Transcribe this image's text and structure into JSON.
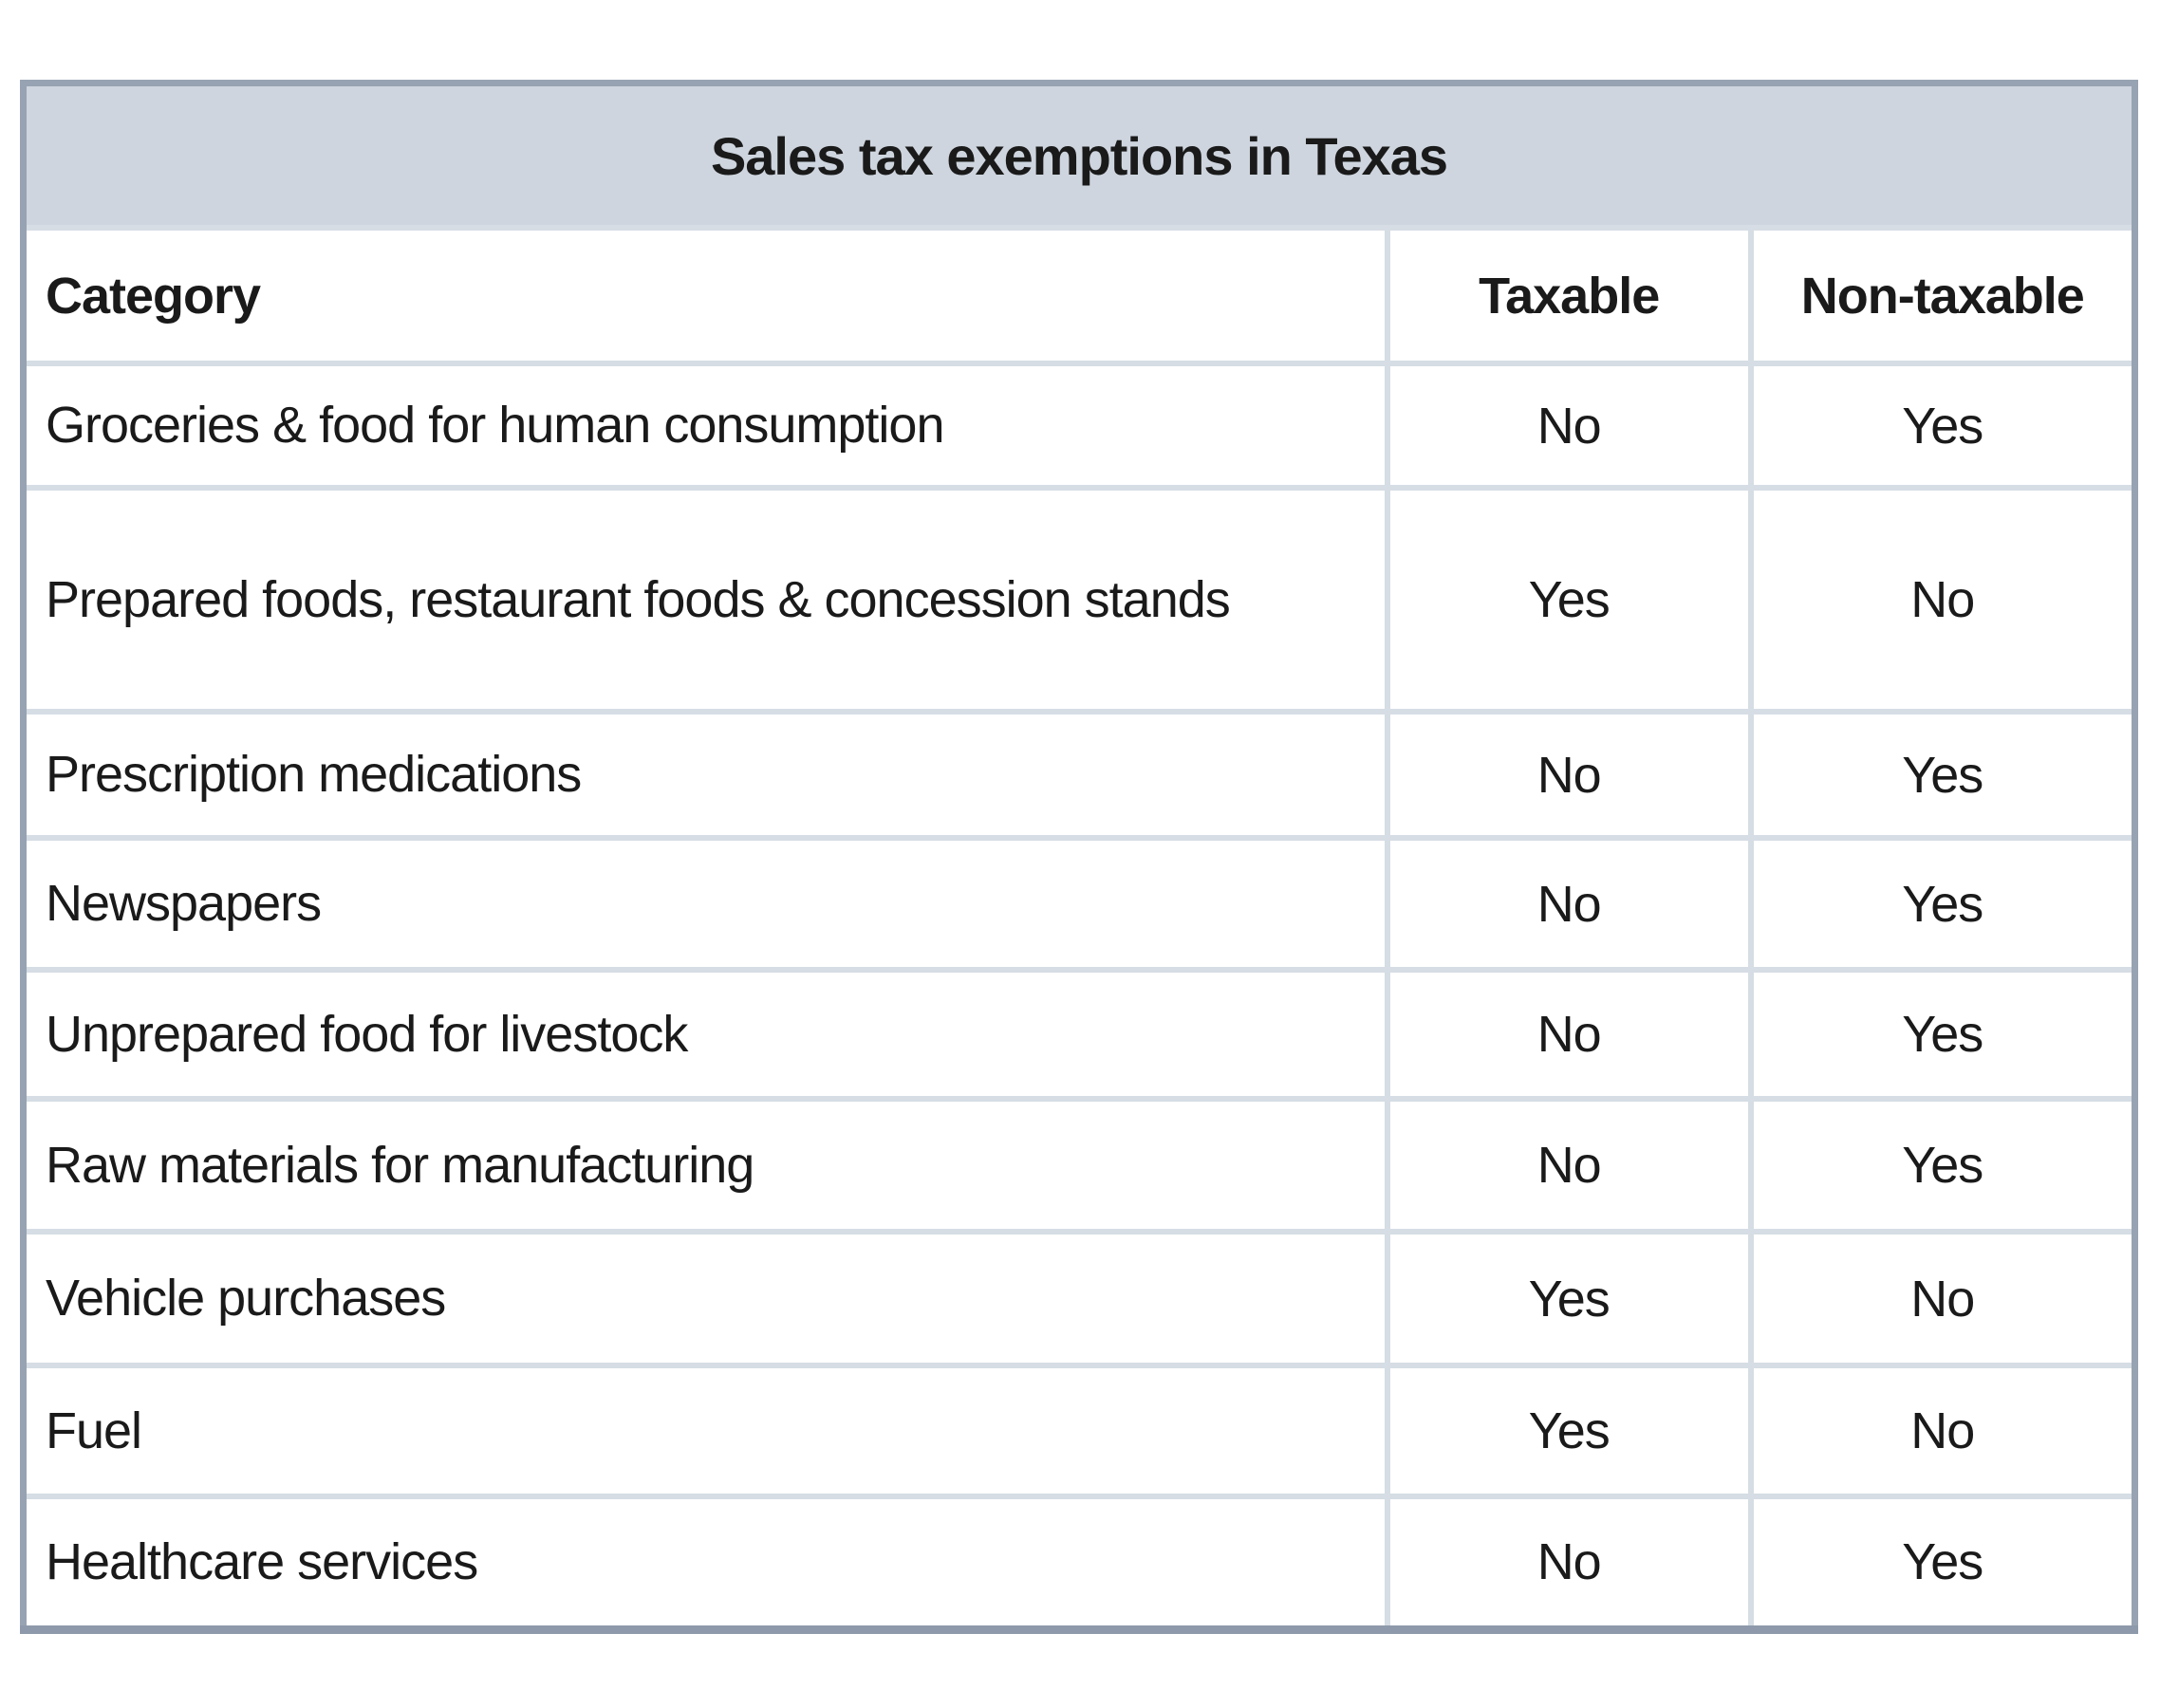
{
  "table": {
    "title": "Sales tax exemptions in Texas",
    "columns": [
      "Category",
      "Taxable",
      "Non-taxable"
    ],
    "rows": [
      {
        "category": "Groceries & food for human consumption",
        "taxable": "No",
        "non_taxable": "Yes"
      },
      {
        "category": "Prepared foods, restaurant foods & concession stands",
        "taxable": "Yes",
        "non_taxable": "No"
      },
      {
        "category": "Prescription medications",
        "taxable": "No",
        "non_taxable": "Yes"
      },
      {
        "category": "Newspapers",
        "taxable": "No",
        "non_taxable": "Yes"
      },
      {
        "category": "Unprepared food for livestock",
        "taxable": "No",
        "non_taxable": "Yes"
      },
      {
        "category": "Raw materials for manufacturing",
        "taxable": "No",
        "non_taxable": "Yes"
      },
      {
        "category": "Vehicle purchases",
        "taxable": "Yes",
        "non_taxable": "No"
      },
      {
        "category": "Fuel",
        "taxable": "Yes",
        "non_taxable": "No"
      },
      {
        "category": "Healthcare services",
        "taxable": "No",
        "non_taxable": "Yes"
      }
    ]
  },
  "colors": {
    "title_background": "#ced5de",
    "outer_border": "#97a3b2",
    "bottom_border": "#8e9aab",
    "grid_line": "#d6dde4",
    "text": "#1a1a1a",
    "cell_background": "#ffffff"
  },
  "chart_data": {
    "type": "table",
    "title": "Sales tax exemptions in Texas",
    "columns": [
      "Category",
      "Taxable",
      "Non-taxable"
    ],
    "categories": [
      "Groceries & food for human consumption",
      "Prepared foods, restaurant foods & concession stands",
      "Prescription medications",
      "Newspapers",
      "Unprepared food for livestock",
      "Raw materials for manufacturing",
      "Vehicle purchases",
      "Fuel",
      "Healthcare services"
    ],
    "series": [
      {
        "name": "Taxable",
        "values": [
          "No",
          "Yes",
          "No",
          "No",
          "No",
          "No",
          "Yes",
          "Yes",
          "No"
        ]
      },
      {
        "name": "Non-taxable",
        "values": [
          "Yes",
          "No",
          "Yes",
          "Yes",
          "Yes",
          "Yes",
          "No",
          "No",
          "Yes"
        ]
      }
    ]
  }
}
